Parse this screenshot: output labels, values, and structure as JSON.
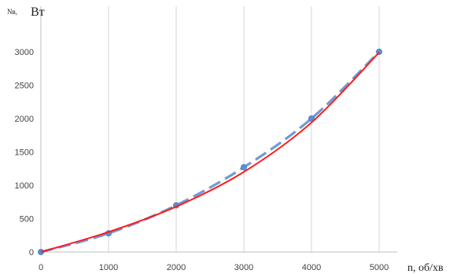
{
  "chart_data": {
    "type": "line",
    "ylabel_prefix": "Nв,",
    "ylabel": "Вт",
    "xlabel": "n, об/хв",
    "xlim": [
      0,
      5000
    ],
    "ylim": [
      0,
      3000
    ],
    "x_ticks": [
      0,
      1000,
      2000,
      3000,
      4000,
      5000
    ],
    "y_ticks": [
      0,
      500,
      1000,
      1500,
      2000,
      2500,
      3000
    ],
    "grid": "vertical",
    "legend": "none",
    "series": [
      {
        "style": "dashed-with-markers",
        "color": "#6f9bd4",
        "marker_color": "#5b8fd4",
        "x": [
          0,
          1000,
          2000,
          3000,
          4000,
          5000
        ],
        "y": [
          0,
          280,
          700,
          1270,
          2000,
          3000
        ]
      },
      {
        "style": "solid",
        "color": "#ff1a1a",
        "x": [
          0,
          1000,
          2000,
          3000,
          4000,
          5000
        ],
        "y": [
          0,
          300,
          680,
          1200,
          1940,
          2990
        ]
      }
    ]
  }
}
